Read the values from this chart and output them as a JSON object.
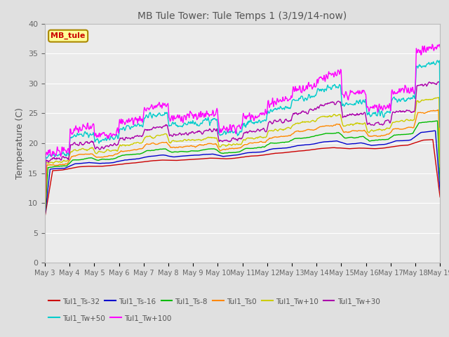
{
  "title": "MB Tule Tower: Tule Temps 1 (3/19/14-now)",
  "ylabel": "Temperature (C)",
  "legend_label": "MB_tule",
  "ylim": [
    0,
    40
  ],
  "yticks": [
    0,
    5,
    10,
    15,
    20,
    25,
    30,
    35,
    40
  ],
  "series_order": [
    "Tul1_Ts-32",
    "Tul1_Ts-16",
    "Tul1_Ts-8",
    "Tul1_Ts0",
    "Tul1_Tw+10",
    "Tul1_Tw+30",
    "Tul1_Tw+50",
    "Tul1_Tw+100"
  ],
  "series": {
    "Tul1_Ts-32": {
      "color": "#cc0000",
      "lw": 1.0
    },
    "Tul1_Ts-16": {
      "color": "#0000cc",
      "lw": 1.0
    },
    "Tul1_Ts-8": {
      "color": "#00bb00",
      "lw": 1.0
    },
    "Tul1_Ts0": {
      "color": "#ff8800",
      "lw": 1.0
    },
    "Tul1_Tw+10": {
      "color": "#cccc00",
      "lw": 1.0
    },
    "Tul1_Tw+30": {
      "color": "#aa00aa",
      "lw": 1.0
    },
    "Tul1_Tw+50": {
      "color": "#00cccc",
      "lw": 1.0
    },
    "Tul1_Tw+100": {
      "color": "#ff00ff",
      "lw": 1.0
    }
  },
  "legend_row1": [
    "Tul1_Ts-32",
    "Tul1_Ts-16",
    "Tul1_Ts-8",
    "Tul1_Ts0",
    "Tul1_Tw+10",
    "Tul1_Tw+30"
  ],
  "legend_row2": [
    "Tul1_Tw+50",
    "Tul1_Tw+100"
  ],
  "bg_color": "#e0e0e0",
  "plot_bg": "#ebebeb",
  "n_days": 16,
  "start_day": 3,
  "points_per_day": 48,
  "figsize": [
    6.4,
    4.8
  ],
  "dpi": 100
}
